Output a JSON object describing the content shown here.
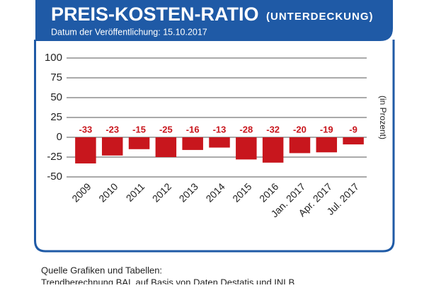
{
  "chart_data": {
    "type": "bar",
    "title": "PREIS-KOSTEN-RATIO",
    "title_note": "(UNTERDECKUNG)",
    "subtitle": "Datum der Veröffentlichung: 15.10.2017",
    "y_label": "(in Prozent)",
    "categories": [
      "2009",
      "2010",
      "2011",
      "2012",
      "2013",
      "2014",
      "2015",
      "2016",
      "Jan. 2017",
      "Apr. 2017",
      "Jul. 2017"
    ],
    "values": [
      -33,
      -23,
      -15,
      -25,
      -16,
      -13,
      -28,
      -32,
      -20,
      -19,
      -9
    ],
    "color": "#c8161d",
    "ylim": [
      -50,
      100
    ],
    "yticks": [
      100,
      75,
      50,
      25,
      0,
      -25,
      -50
    ],
    "grid": true,
    "source": [
      "Quelle Grafiken und Tabellen:",
      "Trendberechnung BAL auf Basis von Daten Destatis und INLB"
    ]
  }
}
